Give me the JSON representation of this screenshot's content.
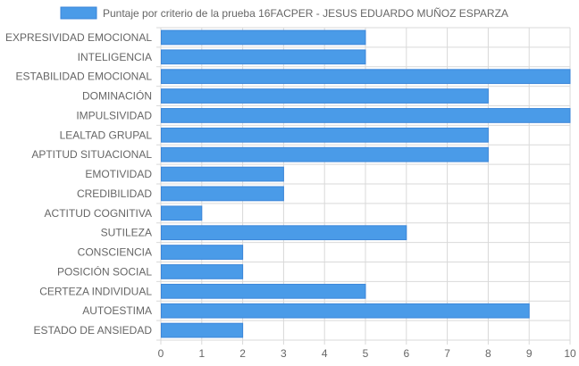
{
  "chart_data": {
    "type": "bar",
    "orientation": "horizontal",
    "title": "",
    "legend": {
      "position": "top",
      "entries": [
        "Puntaje por criterio de la prueba 16FACPER - JESUS EDUARDO MUÑOZ ESPARZA"
      ]
    },
    "categories": [
      "EXPRESIVIDAD EMOCIONAL",
      "INTELIGENCIA",
      "ESTABILIDAD EMOCIONAL",
      "DOMINACIÓN",
      "IMPULSIVIDAD",
      "LEALTAD GRUPAL",
      "APTITUD SITUACIONAL",
      "EMOTIVIDAD",
      "CREDIBILIDAD",
      "ACTITUD COGNITIVA",
      "SUTILEZA",
      "CONSCIENCIA",
      "POSICIÓN SOCIAL",
      "CERTEZA INDIVIDUAL",
      "AUTOESTIMA",
      "ESTADO DE ANSIEDAD"
    ],
    "series": [
      {
        "name": "Puntaje por criterio de la prueba 16FACPER - JESUS EDUARDO MUÑOZ ESPARZA",
        "values": [
          5,
          5,
          10,
          8,
          10,
          8,
          8,
          3,
          3,
          1,
          6,
          2,
          2,
          5,
          9,
          2
        ]
      }
    ],
    "xlim": [
      0,
      10
    ],
    "xticks": [
      "0",
      "1",
      "2",
      "3",
      "4",
      "5",
      "6",
      "7",
      "8",
      "9",
      "10"
    ],
    "grid": true,
    "xlabel": "",
    "ylabel": "",
    "colors": {
      "bar_fill": "#4a9be8",
      "bar_border": "#3b86d9",
      "grid": "#d9d9d9",
      "text": "#666666"
    }
  }
}
